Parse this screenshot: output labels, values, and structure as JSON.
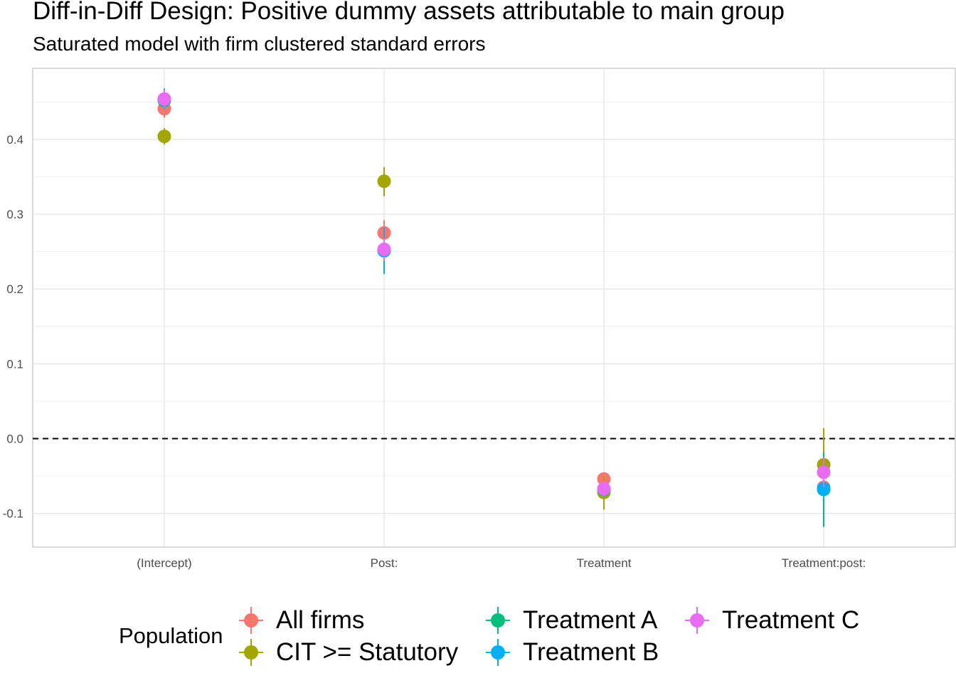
{
  "chart_data": {
    "type": "scatter",
    "title": "Diff-in-Diff Design: Positive dummy assets attributable to main group",
    "subtitle": "Saturated model with firm clustered standard errors",
    "xlabel": "",
    "ylabel": "",
    "categories": [
      "(Intercept)",
      "Post:",
      "Treatment",
      "Treatment:post:"
    ],
    "yticks": [
      "0.4",
      "0.3",
      "0.2",
      "0.1",
      "0.0",
      "-0.1"
    ],
    "ytick_values": [
      0.4,
      0.3,
      0.2,
      0.1,
      0.0,
      -0.1
    ],
    "ylim": [
      -0.145,
      0.495
    ],
    "reference_line": 0.0,
    "grid": true,
    "legend": {
      "title": "Population",
      "placement": "bottom"
    },
    "series": [
      {
        "name": "All firms",
        "color": "#F8766D",
        "values": [
          0.441,
          0.275,
          -0.054,
          -0.065
        ],
        "lower": [
          0.429,
          0.258,
          -0.063,
          -0.08
        ],
        "upper": [
          0.453,
          0.292,
          -0.045,
          -0.05
        ]
      },
      {
        "name": "CIT >= Statutory",
        "color": "#A3A500",
        "values": [
          0.404,
          0.344,
          -0.072,
          -0.035
        ],
        "lower": [
          0.393,
          0.324,
          -0.095,
          -0.085
        ],
        "upper": [
          0.415,
          0.363,
          -0.05,
          0.014
        ]
      },
      {
        "name": "Treatment A",
        "color": "#00BF7D",
        "values": [
          0.452,
          0.252,
          -0.068,
          -0.068
        ],
        "lower": [
          0.44,
          0.235,
          -0.078,
          -0.118
        ],
        "upper": [
          0.465,
          0.269,
          -0.058,
          -0.018
        ]
      },
      {
        "name": "Treatment B",
        "color": "#00B0F6",
        "values": [
          0.453,
          0.251,
          -0.068,
          -0.067
        ],
        "lower": [
          0.44,
          0.22,
          -0.078,
          -0.08
        ],
        "upper": [
          0.468,
          0.282,
          -0.058,
          -0.054
        ]
      },
      {
        "name": "Treatment C",
        "color": "#E76BF3",
        "values": [
          0.454,
          0.253,
          -0.067,
          -0.045
        ],
        "lower": [
          0.442,
          0.238,
          -0.077,
          -0.065
        ],
        "upper": [
          0.466,
          0.268,
          -0.057,
          -0.025
        ]
      }
    ]
  }
}
